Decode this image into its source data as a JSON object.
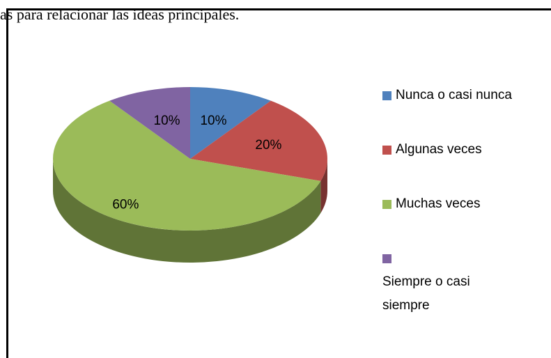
{
  "header_text": "as para relacionar las ideas principales.",
  "chart_data": {
    "type": "pie",
    "categories": [
      "Nunca o casi nunca",
      "Algunas veces",
      "Muchas veces",
      "Siempre o casi siempre"
    ],
    "values": [
      10,
      20,
      60,
      10
    ],
    "value_labels": [
      "10%",
      "20%",
      "60%",
      "10%"
    ],
    "colors": [
      "#4f81bd",
      "#c0504d",
      "#9bbb59",
      "#8064a2"
    ],
    "legend": "right"
  }
}
